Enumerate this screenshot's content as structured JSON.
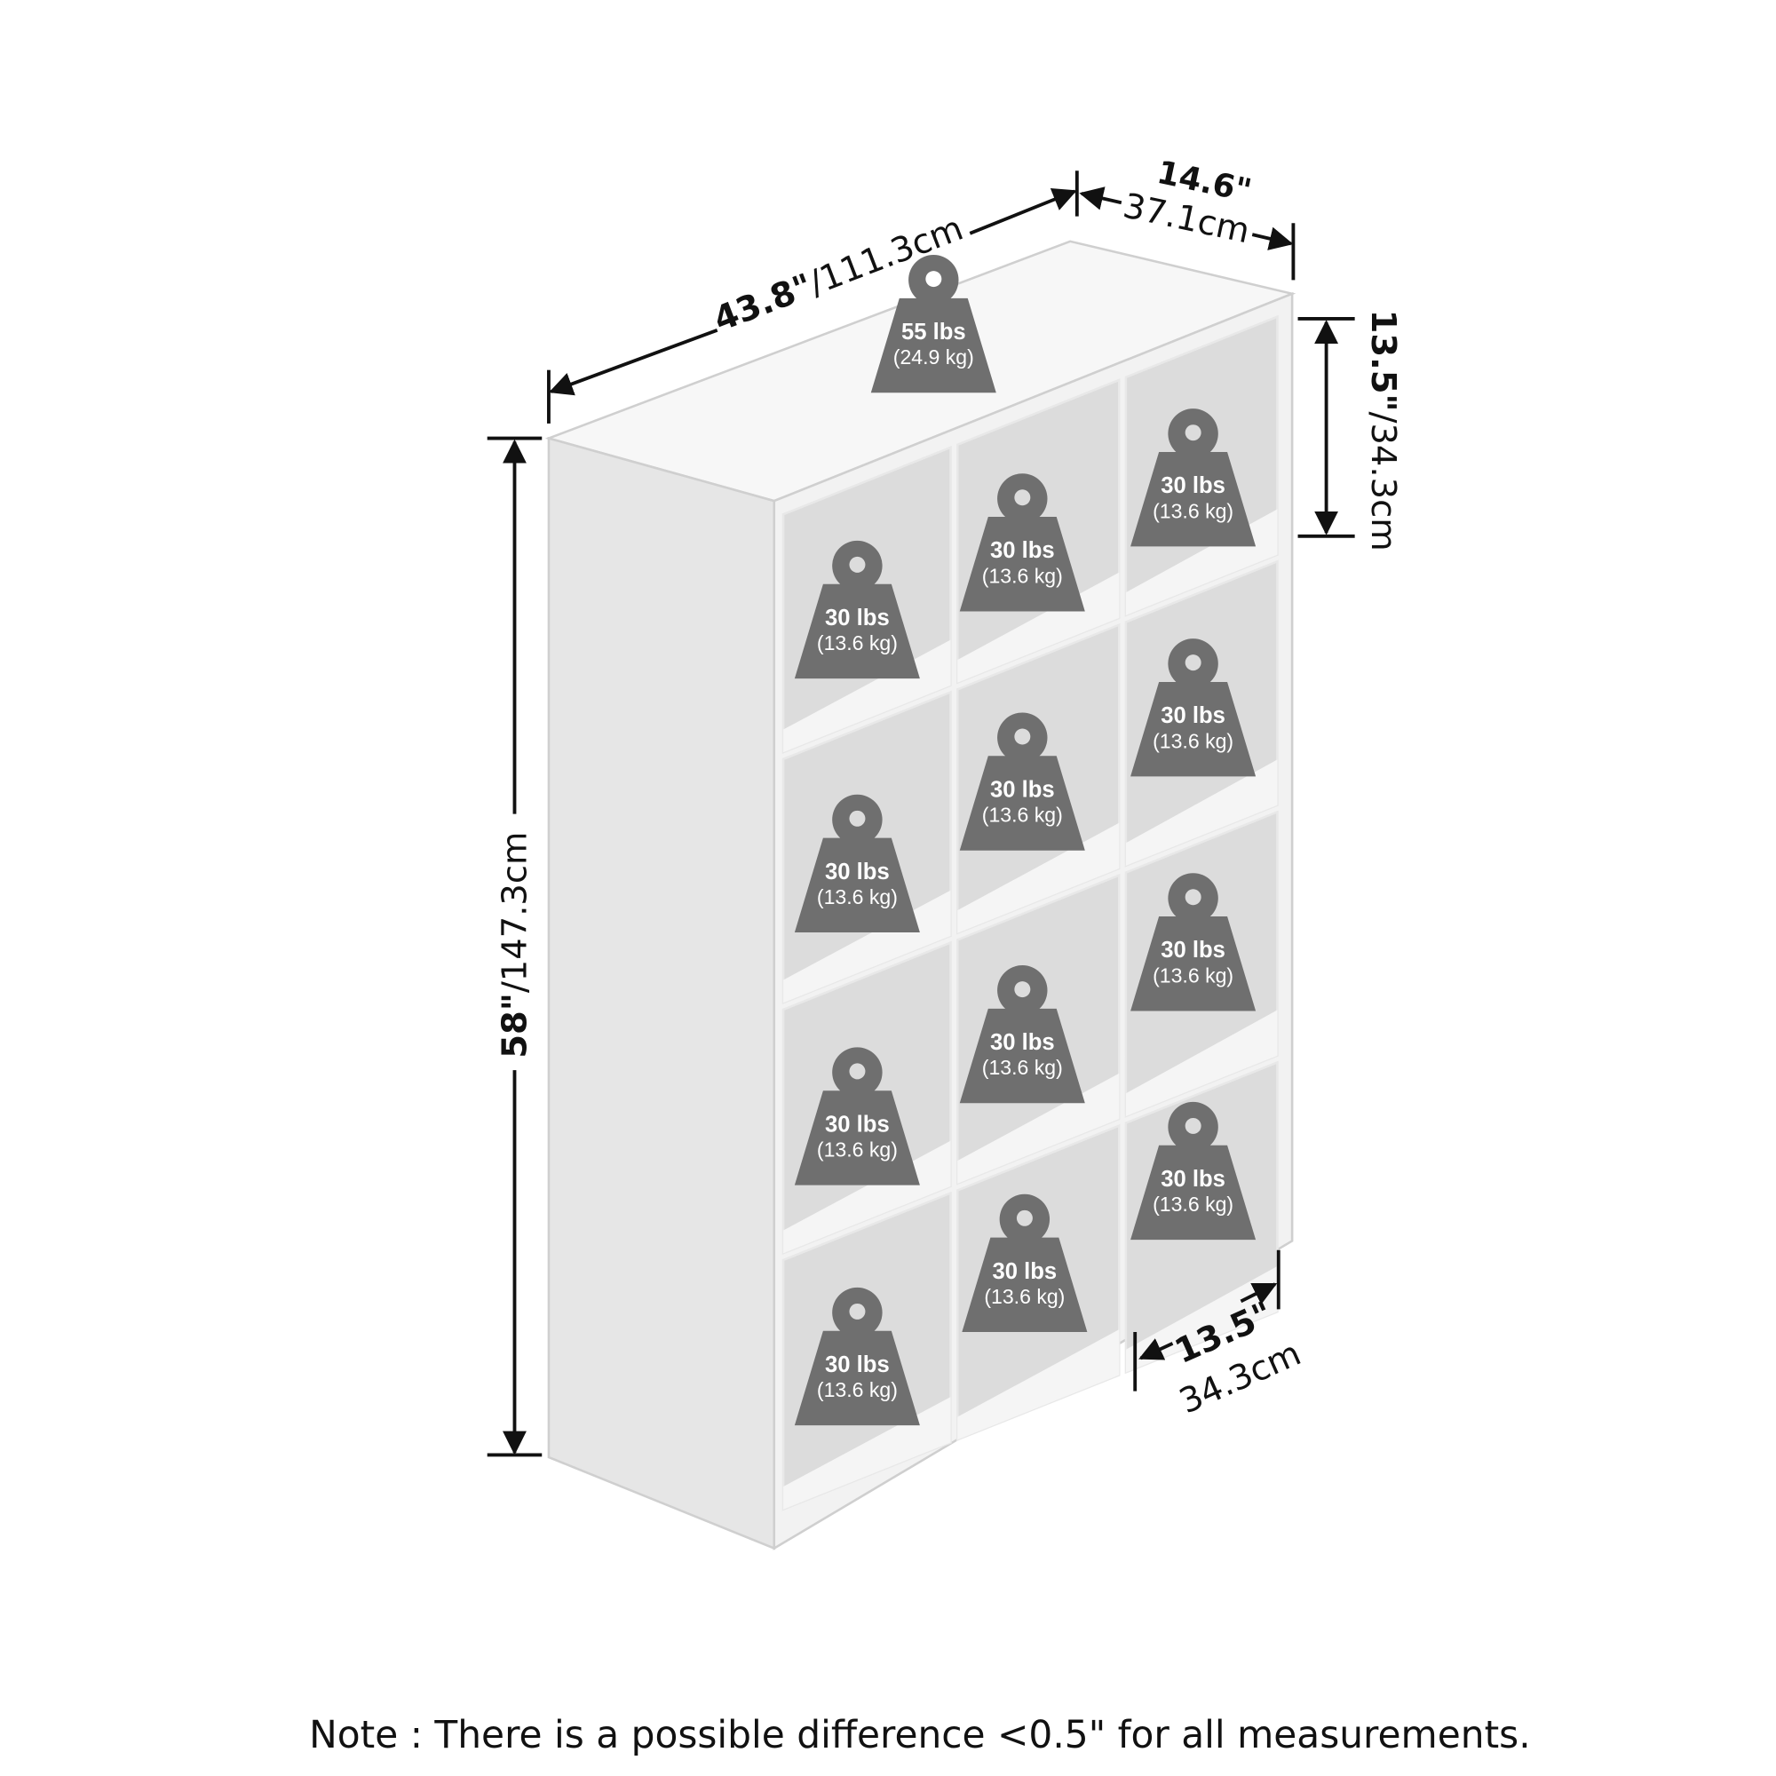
{
  "dimensions": {
    "width": {
      "in": "43.8\"",
      "cm": "/111.3cm"
    },
    "depth": {
      "in": "14.6\"",
      "cm": "37.1cm"
    },
    "height": {
      "in": "58\"",
      "cm": "/147.3cm"
    },
    "cube_height": {
      "in": "13.5\"",
      "cm": "/34.3cm"
    },
    "cube_width": {
      "in": "13.5\"",
      "cm": "34.3cm"
    }
  },
  "top_weight": {
    "lbs": "55 lbs",
    "kg": "(24.9 kg)"
  },
  "cube_weights": [
    {
      "lbs": "30 lbs",
      "kg": "(13.6 kg)"
    },
    {
      "lbs": "30 lbs",
      "kg": "(13.6 kg)"
    },
    {
      "lbs": "30 lbs",
      "kg": "(13.6 kg)"
    },
    {
      "lbs": "30 lbs",
      "kg": "(13.6 kg)"
    },
    {
      "lbs": "30 lbs",
      "kg": "(13.6 kg)"
    },
    {
      "lbs": "30 lbs",
      "kg": "(13.6 kg)"
    },
    {
      "lbs": "30 lbs",
      "kg": "(13.6 kg)"
    },
    {
      "lbs": "30 lbs",
      "kg": "(13.6 kg)"
    },
    {
      "lbs": "30 lbs",
      "kg": "(13.6 kg)"
    },
    {
      "lbs": "30 lbs",
      "kg": "(13.6 kg)"
    },
    {
      "lbs": "30 lbs",
      "kg": "(13.6 kg)"
    },
    {
      "lbs": "30 lbs",
      "kg": "(13.6 kg)"
    }
  ],
  "note": "Note : There is a possible difference <0.5\" for all measurements.",
  "colors": {
    "weight": "#6f6f6f",
    "panel": "#f4f4f4",
    "interior": "#dcdcdc"
  }
}
